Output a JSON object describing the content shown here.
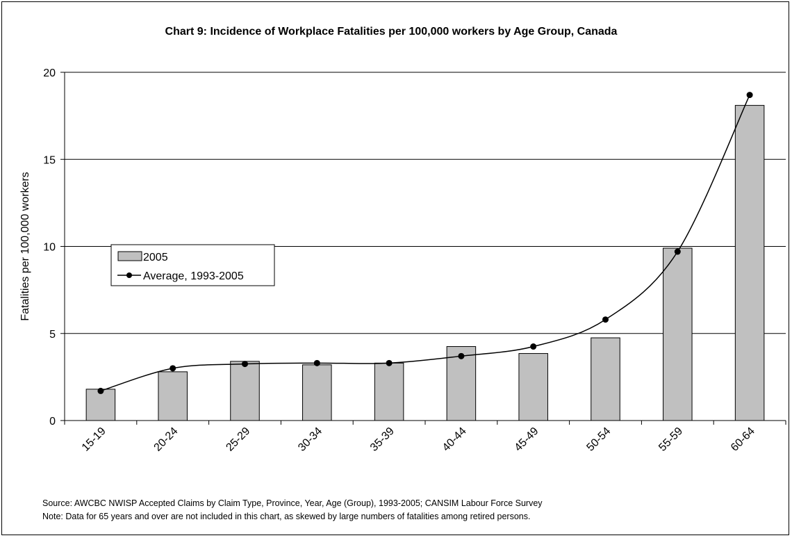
{
  "chart_data": {
    "type": "bar",
    "title": "Chart 9: Incidence of Workplace Fatalities per 100,000 workers by Age Group, Canada",
    "xlabel": "",
    "ylabel": "Fatalities per 100,000 workers",
    "categories": [
      "15-19",
      "20-24",
      "25-29",
      "30-34",
      "35-39",
      "40-44",
      "45-49",
      "50-54",
      "55-59",
      "60-64"
    ],
    "ylim": [
      0,
      20
    ],
    "yticks": [
      0,
      5,
      10,
      15,
      20
    ],
    "grid": true,
    "legend": "left-middle",
    "series": [
      {
        "name": "2005",
        "type": "bar",
        "color": "#c0c0c0",
        "values": [
          1.8,
          2.8,
          3.4,
          3.2,
          3.3,
          4.25,
          3.85,
          4.75,
          9.9,
          18.1
        ]
      },
      {
        "name": "Average, 1993-2005",
        "type": "line",
        "color": "#000000",
        "values": [
          1.7,
          3.0,
          3.25,
          3.3,
          3.3,
          3.7,
          4.25,
          5.8,
          9.7,
          18.7
        ]
      }
    ]
  },
  "notes": {
    "source": "Source: AWCBC NWISP Accepted Claims by Claim Type, Province, Year, Age (Group), 1993-2005; CANSIM Labour Force Survey",
    "note": "Note: Data for 65 years and over are not included in this chart, as skewed by large numbers of fatalities among retired persons."
  }
}
